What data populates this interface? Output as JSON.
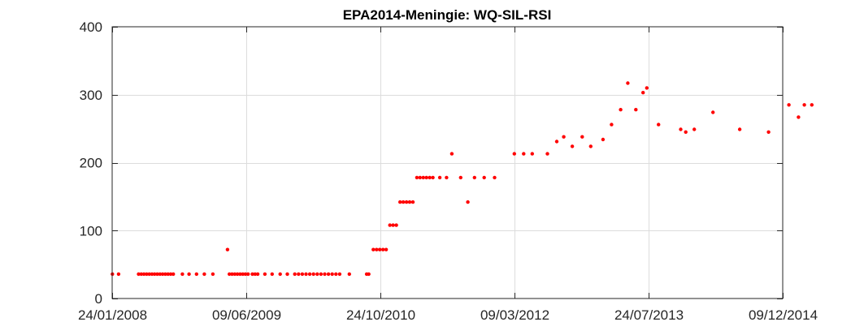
{
  "chart_data": {
    "type": "scatter",
    "title": "EPA2014-Meningie: WQ-SIL-RSI",
    "xlabel": "",
    "ylabel": "",
    "x_axis_type": "date",
    "xlim": [
      "2008-01-24",
      "2014-12-09"
    ],
    "ylim": [
      0,
      400
    ],
    "x_ticks": [
      "24/01/2008",
      "09/06/2009",
      "24/10/2010",
      "09/03/2012",
      "24/07/2013",
      "09/12/2014"
    ],
    "x_tick_dates": [
      "2008-01-24",
      "2009-06-09",
      "2010-10-24",
      "2012-03-09",
      "2013-07-24",
      "2014-12-09"
    ],
    "y_ticks": [
      "0",
      "100",
      "200",
      "300",
      "400"
    ],
    "grid": true,
    "legend": "none",
    "marker_color": "#ff0000",
    "series": [
      {
        "points": [
          [
            "2008-01-25",
            36
          ],
          [
            "2008-02-17",
            36
          ],
          [
            "2008-05-02",
            36
          ],
          [
            "2008-05-12",
            36
          ],
          [
            "2008-05-22",
            36
          ],
          [
            "2008-06-01",
            36
          ],
          [
            "2008-06-11",
            36
          ],
          [
            "2008-06-21",
            36
          ],
          [
            "2008-07-01",
            36
          ],
          [
            "2008-07-11",
            36
          ],
          [
            "2008-07-21",
            36
          ],
          [
            "2008-07-31",
            36
          ],
          [
            "2008-08-10",
            36
          ],
          [
            "2008-08-20",
            36
          ],
          [
            "2008-08-30",
            36
          ],
          [
            "2008-09-09",
            36
          ],
          [
            "2008-10-13",
            36
          ],
          [
            "2008-11-07",
            36
          ],
          [
            "2008-12-05",
            36
          ],
          [
            "2009-01-03",
            36
          ],
          [
            "2009-02-04",
            36
          ],
          [
            "2009-03-31",
            72
          ],
          [
            "2009-04-07",
            36
          ],
          [
            "2009-04-17",
            36
          ],
          [
            "2009-04-27",
            36
          ],
          [
            "2009-05-07",
            36
          ],
          [
            "2009-05-17",
            36
          ],
          [
            "2009-05-27",
            36
          ],
          [
            "2009-06-06",
            36
          ],
          [
            "2009-06-16",
            36
          ],
          [
            "2009-07-02",
            36
          ],
          [
            "2009-07-12",
            36
          ],
          [
            "2009-07-22",
            36
          ],
          [
            "2009-08-18",
            36
          ],
          [
            "2009-09-14",
            36
          ],
          [
            "2009-10-14",
            36
          ],
          [
            "2009-11-10",
            36
          ],
          [
            "2009-12-08",
            36
          ],
          [
            "2009-12-22",
            36
          ],
          [
            "2010-01-05",
            36
          ],
          [
            "2010-01-19",
            36
          ],
          [
            "2010-02-02",
            36
          ],
          [
            "2010-02-16",
            36
          ],
          [
            "2010-03-02",
            36
          ],
          [
            "2010-03-16",
            36
          ],
          [
            "2010-03-30",
            36
          ],
          [
            "2010-04-13",
            36
          ],
          [
            "2010-04-27",
            36
          ],
          [
            "2010-05-11",
            36
          ],
          [
            "2010-05-25",
            36
          ],
          [
            "2010-06-30",
            36
          ],
          [
            "2010-09-03",
            36
          ],
          [
            "2010-09-11",
            36
          ],
          [
            "2010-09-28",
            72
          ],
          [
            "2010-10-10",
            72
          ],
          [
            "2010-10-22",
            72
          ],
          [
            "2010-11-03",
            72
          ],
          [
            "2010-11-15",
            72
          ],
          [
            "2010-11-29",
            108
          ],
          [
            "2010-12-11",
            108
          ],
          [
            "2010-12-23",
            108
          ],
          [
            "2011-01-06",
            142
          ],
          [
            "2011-01-18",
            142
          ],
          [
            "2011-01-30",
            142
          ],
          [
            "2011-02-11",
            142
          ],
          [
            "2011-02-23",
            142
          ],
          [
            "2011-03-10",
            178
          ],
          [
            "2011-03-22",
            178
          ],
          [
            "2011-04-03",
            178
          ],
          [
            "2011-04-15",
            178
          ],
          [
            "2011-04-27",
            178
          ],
          [
            "2011-05-09",
            178
          ],
          [
            "2011-06-04",
            178
          ],
          [
            "2011-06-29",
            178
          ],
          [
            "2011-07-19",
            213
          ],
          [
            "2011-08-21",
            178
          ],
          [
            "2011-09-17",
            142
          ],
          [
            "2011-10-12",
            178
          ],
          [
            "2011-11-17",
            178
          ],
          [
            "2011-12-26",
            178
          ],
          [
            "2012-03-09",
            213
          ],
          [
            "2012-04-13",
            213
          ],
          [
            "2012-05-15",
            213
          ],
          [
            "2012-07-11",
            213
          ],
          [
            "2012-08-15",
            231
          ],
          [
            "2012-09-10",
            238
          ],
          [
            "2012-10-12",
            224
          ],
          [
            "2012-11-18",
            238
          ],
          [
            "2012-12-20",
            224
          ],
          [
            "2013-02-04",
            234
          ],
          [
            "2013-03-08",
            256
          ],
          [
            "2013-04-11",
            278
          ],
          [
            "2013-05-08",
            317
          ],
          [
            "2013-06-07",
            278
          ],
          [
            "2013-07-04",
            303
          ],
          [
            "2013-07-18",
            310
          ],
          [
            "2013-08-31",
            256
          ],
          [
            "2013-11-22",
            249
          ],
          [
            "2013-12-11",
            245
          ],
          [
            "2014-01-12",
            249
          ],
          [
            "2014-03-23",
            274
          ],
          [
            "2014-07-01",
            249
          ],
          [
            "2014-10-17",
            245
          ],
          [
            "2015-01-01",
            285
          ],
          [
            "2015-02-06",
            267
          ],
          [
            "2015-02-28",
            285
          ],
          [
            "2015-03-28",
            285
          ]
        ]
      }
    ]
  }
}
